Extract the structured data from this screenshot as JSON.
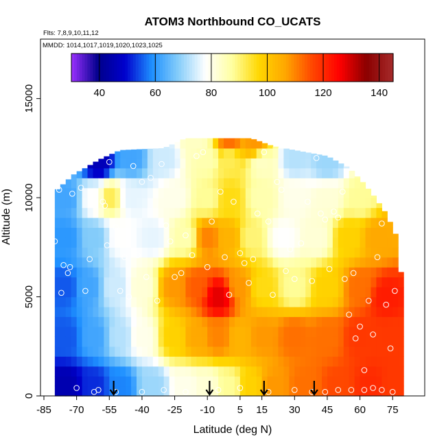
{
  "chart_data": {
    "type": "heatmap",
    "title": "ATOM3 Northbound CO_UCATS",
    "subtitle_flights": "Flts: 7,8,9,10,11,12",
    "subtitle_dates": "MMDD: 1014,1017,1019,1020,1023,1025",
    "xlabel": "Latitude (deg N)",
    "ylabel": "Altitude (m)",
    "xlim": [
      -85,
      85
    ],
    "ylim": [
      0,
      18000
    ],
    "x_ticks": [
      -85,
      -70,
      -55,
      -40,
      -25,
      -10,
      5,
      15,
      30,
      45,
      60,
      75
    ],
    "x_tick_labels": [
      "-85",
      "-70",
      "-55",
      "-40",
      "-25",
      "-10",
      "5",
      "15",
      "30",
      "45",
      "60",
      "75"
    ],
    "y_ticks": [
      0,
      5000,
      10000,
      15000
    ],
    "y_tick_labels": [
      "0",
      "5000",
      "10000",
      "15000"
    ],
    "colorbar": {
      "min": 30,
      "max": 145,
      "ticks": [
        40,
        60,
        80,
        100,
        120,
        140
      ],
      "tick_labels": [
        "40",
        "60",
        "80",
        "100",
        "120",
        "140"
      ],
      "placement": "top inside plot",
      "colors": [
        "#9b30ff",
        "#00008b",
        "#0000cd",
        "#1e90ff",
        "#87cefa",
        "#ffffff",
        "#ffffa0",
        "#ffd700",
        "#ffa500",
        "#ff4500",
        "#ff0000",
        "#8b0000",
        "#a52a2a"
      ]
    },
    "grid_lat_step": 2.5,
    "grid_alt_step": 500,
    "coverage_top_by_lat": [
      [
        -80,
        10300
      ],
      [
        -77,
        10600
      ],
      [
        -74,
        10900
      ],
      [
        -71,
        11200
      ],
      [
        -66,
        11500
      ],
      [
        -60,
        11900
      ],
      [
        -50,
        12400
      ],
      [
        -30,
        12500
      ],
      [
        -20,
        13000
      ],
      [
        -5,
        13000
      ],
      [
        10,
        13000
      ],
      [
        20,
        12600
      ],
      [
        30,
        12400
      ],
      [
        45,
        12100
      ],
      [
        55,
        11500
      ],
      [
        62,
        10700
      ],
      [
        67,
        10000
      ],
      [
        72,
        9200
      ],
      [
        77,
        8000
      ],
      [
        79,
        6000
      ]
    ],
    "co_anchors": [
      {
        "lat": -75,
        "alt": 500,
        "co": 45
      },
      {
        "lat": -62,
        "alt": 500,
        "co": 52
      },
      {
        "lat": -50,
        "alt": 500,
        "co": 58
      },
      {
        "lat": -35,
        "alt": 500,
        "co": 70
      },
      {
        "lat": -20,
        "alt": 500,
        "co": 80
      },
      {
        "lat": -10,
        "alt": 500,
        "co": 82
      },
      {
        "lat": 0,
        "alt": 500,
        "co": 88
      },
      {
        "lat": 10,
        "alt": 500,
        "co": 98
      },
      {
        "lat": 20,
        "alt": 500,
        "co": 108
      },
      {
        "lat": 35,
        "alt": 500,
        "co": 112
      },
      {
        "lat": 50,
        "alt": 500,
        "co": 116
      },
      {
        "lat": 65,
        "alt": 500,
        "co": 120
      },
      {
        "lat": 75,
        "alt": 500,
        "co": 118
      },
      {
        "lat": -75,
        "alt": 3000,
        "co": 55
      },
      {
        "lat": -62,
        "alt": 3000,
        "co": 62
      },
      {
        "lat": -50,
        "alt": 3000,
        "co": 72
      },
      {
        "lat": -40,
        "alt": 3000,
        "co": 80
      },
      {
        "lat": -25,
        "alt": 3000,
        "co": 98
      },
      {
        "lat": -15,
        "alt": 3000,
        "co": 106
      },
      {
        "lat": -5,
        "alt": 3000,
        "co": 110
      },
      {
        "lat": 5,
        "alt": 3000,
        "co": 104
      },
      {
        "lat": 15,
        "alt": 3000,
        "co": 108
      },
      {
        "lat": 30,
        "alt": 3000,
        "co": 112
      },
      {
        "lat": 45,
        "alt": 3000,
        "co": 112
      },
      {
        "lat": 60,
        "alt": 3000,
        "co": 118
      },
      {
        "lat": 75,
        "alt": 3000,
        "co": 118
      },
      {
        "lat": -75,
        "alt": 5500,
        "co": 55
      },
      {
        "lat": -65,
        "alt": 5500,
        "co": 62
      },
      {
        "lat": -52,
        "alt": 5500,
        "co": 74
      },
      {
        "lat": -40,
        "alt": 5500,
        "co": 82
      },
      {
        "lat": -25,
        "alt": 5500,
        "co": 108
      },
      {
        "lat": -15,
        "alt": 5500,
        "co": 114
      },
      {
        "lat": -5,
        "alt": 5000,
        "co": 128
      },
      {
        "lat": 5,
        "alt": 5500,
        "co": 108
      },
      {
        "lat": 15,
        "alt": 5500,
        "co": 96
      },
      {
        "lat": 30,
        "alt": 5500,
        "co": 88
      },
      {
        "lat": 45,
        "alt": 5500,
        "co": 98
      },
      {
        "lat": 60,
        "alt": 5500,
        "co": 112
      },
      {
        "lat": 72,
        "alt": 5000,
        "co": 122
      },
      {
        "lat": -75,
        "alt": 8000,
        "co": 60
      },
      {
        "lat": -62,
        "alt": 8000,
        "co": 68
      },
      {
        "lat": -50,
        "alt": 8000,
        "co": 78
      },
      {
        "lat": -35,
        "alt": 8000,
        "co": 76
      },
      {
        "lat": -20,
        "alt": 8000,
        "co": 86
      },
      {
        "lat": -10,
        "alt": 8000,
        "co": 110
      },
      {
        "lat": 0,
        "alt": 8000,
        "co": 104
      },
      {
        "lat": 10,
        "alt": 8000,
        "co": 90
      },
      {
        "lat": 25,
        "alt": 8000,
        "co": 78
      },
      {
        "lat": 40,
        "alt": 8000,
        "co": 82
      },
      {
        "lat": 55,
        "alt": 8000,
        "co": 98
      },
      {
        "lat": 68,
        "alt": 8000,
        "co": 106
      },
      {
        "lat": -75,
        "alt": 10000,
        "co": 62
      },
      {
        "lat": -62,
        "alt": 10000,
        "co": 78
      },
      {
        "lat": -55,
        "alt": 10000,
        "co": 92
      },
      {
        "lat": -45,
        "alt": 10000,
        "co": 76
      },
      {
        "lat": -25,
        "alt": 10000,
        "co": 80
      },
      {
        "lat": -10,
        "alt": 10000,
        "co": 88
      },
      {
        "lat": 0,
        "alt": 10000,
        "co": 96
      },
      {
        "lat": 15,
        "alt": 10000,
        "co": 86
      },
      {
        "lat": 30,
        "alt": 10000,
        "co": 80
      },
      {
        "lat": 45,
        "alt": 10000,
        "co": 82
      },
      {
        "lat": 60,
        "alt": 10000,
        "co": 88
      },
      {
        "lat": -60,
        "alt": 11800,
        "co": 46
      },
      {
        "lat": -45,
        "alt": 12000,
        "co": 62
      },
      {
        "lat": -30,
        "alt": 12000,
        "co": 74
      },
      {
        "lat": -10,
        "alt": 12000,
        "co": 86
      },
      {
        "lat": 0,
        "alt": 12000,
        "co": 92
      },
      {
        "lat": 15,
        "alt": 11800,
        "co": 84
      },
      {
        "lat": 30,
        "alt": 12000,
        "co": 72
      },
      {
        "lat": 45,
        "alt": 11800,
        "co": 70
      },
      {
        "lat": -15,
        "alt": 12800,
        "co": 84
      },
      {
        "lat": 0,
        "alt": 12800,
        "co": 112
      },
      {
        "lat": 12,
        "alt": 12800,
        "co": 108
      }
    ],
    "flight_observations": [
      [
        -80,
        7800
      ],
      [
        -78,
        10400
      ],
      [
        -76,
        6600
      ],
      [
        -74,
        6200
      ],
      [
        -73,
        6500
      ],
      [
        -77,
        5200
      ],
      [
        -72,
        10200
      ],
      [
        -68,
        10500
      ],
      [
        -66,
        5300
      ],
      [
        -64,
        6900
      ],
      [
        -62,
        200
      ],
      [
        -58,
        9800
      ],
      [
        -57,
        9600
      ],
      [
        -56,
        7600
      ],
      [
        -55,
        11800
      ],
      [
        -52,
        8500
      ],
      [
        -50,
        5300
      ],
      [
        -48,
        7000
      ],
      [
        -46,
        5000
      ],
      [
        -44,
        11600
      ],
      [
        -42,
        7100
      ],
      [
        -40,
        10800
      ],
      [
        -38,
        6000
      ],
      [
        -36,
        11000
      ],
      [
        -33,
        4800
      ],
      [
        -31,
        11700
      ],
      [
        -29,
        8600
      ],
      [
        -27,
        7800
      ],
      [
        -25,
        6000
      ],
      [
        -22,
        6200
      ],
      [
        -20,
        8100
      ],
      [
        -17,
        7100
      ],
      [
        -15,
        12100
      ],
      [
        -12,
        12300
      ],
      [
        -10,
        6500
      ],
      [
        -8,
        8800
      ],
      [
        -4,
        10300
      ],
      [
        -2,
        7000
      ],
      [
        0,
        5100
      ],
      [
        2,
        9800
      ],
      [
        5,
        7200
      ],
      [
        7,
        6700
      ],
      [
        9,
        5700
      ],
      [
        11,
        6900
      ],
      [
        13,
        9200
      ],
      [
        16,
        12300
      ],
      [
        18,
        8800
      ],
      [
        20,
        5100
      ],
      [
        22,
        10800
      ],
      [
        24,
        10400
      ],
      [
        26,
        6300
      ],
      [
        28,
        7400
      ],
      [
        30,
        5900
      ],
      [
        33,
        7700
      ],
      [
        36,
        9800
      ],
      [
        38,
        5800
      ],
      [
        40,
        12000
      ],
      [
        42,
        9200
      ],
      [
        44,
        8900
      ],
      [
        46,
        6400
      ],
      [
        48,
        9300
      ],
      [
        50,
        9000
      ],
      [
        52,
        10300
      ],
      [
        53,
        5900
      ],
      [
        55,
        4100
      ],
      [
        57,
        6200
      ],
      [
        58,
        2900
      ],
      [
        60,
        3500
      ],
      [
        62,
        1300
      ],
      [
        64,
        4800
      ],
      [
        66,
        3100
      ],
      [
        68,
        7000
      ],
      [
        70,
        8700
      ],
      [
        72,
        4600
      ],
      [
        74,
        2400
      ],
      [
        76,
        5300
      ],
      [
        77,
        8800
      ],
      [
        -70,
        400
      ],
      [
        -60,
        300
      ],
      [
        -52,
        200
      ],
      [
        -40,
        200
      ],
      [
        -30,
        300
      ],
      [
        -20,
        200
      ],
      [
        -5,
        300
      ],
      [
        5,
        400
      ],
      [
        18,
        200
      ],
      [
        30,
        300
      ],
      [
        38,
        200
      ],
      [
        44,
        200
      ],
      [
        50,
        300
      ],
      [
        56,
        300
      ],
      [
        62,
        300
      ],
      [
        66,
        400
      ],
      [
        70,
        300
      ],
      [
        75,
        200
      ]
    ],
    "surface_markers_lat": [
      -53,
      -9,
      16,
      39
    ],
    "data_extent_lat": [
      -80,
      79
    ]
  }
}
